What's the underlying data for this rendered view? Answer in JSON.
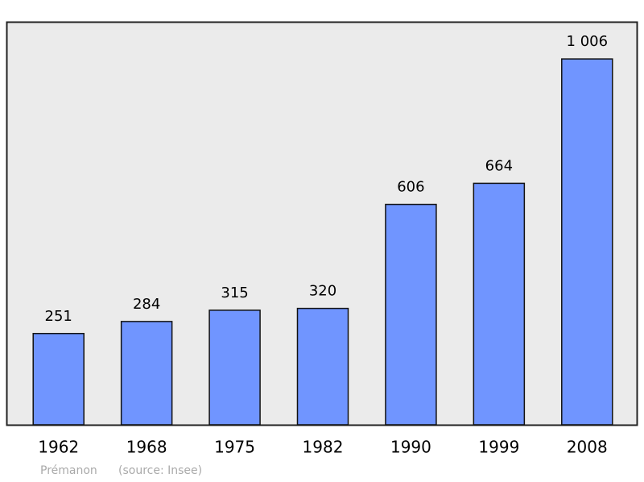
{
  "chart_data": {
    "type": "bar",
    "categories": [
      "1962",
      "1968",
      "1975",
      "1982",
      "1990",
      "1999",
      "2008"
    ],
    "values": [
      251,
      284,
      315,
      320,
      606,
      664,
      1006
    ],
    "value_labels": [
      "251",
      "284",
      "315",
      "320",
      "606",
      "664",
      "1 006"
    ],
    "color": "#7095ff",
    "ylim": [
      0,
      1106
    ],
    "caption": "Prémanon",
    "source": "(source: Insee)"
  }
}
